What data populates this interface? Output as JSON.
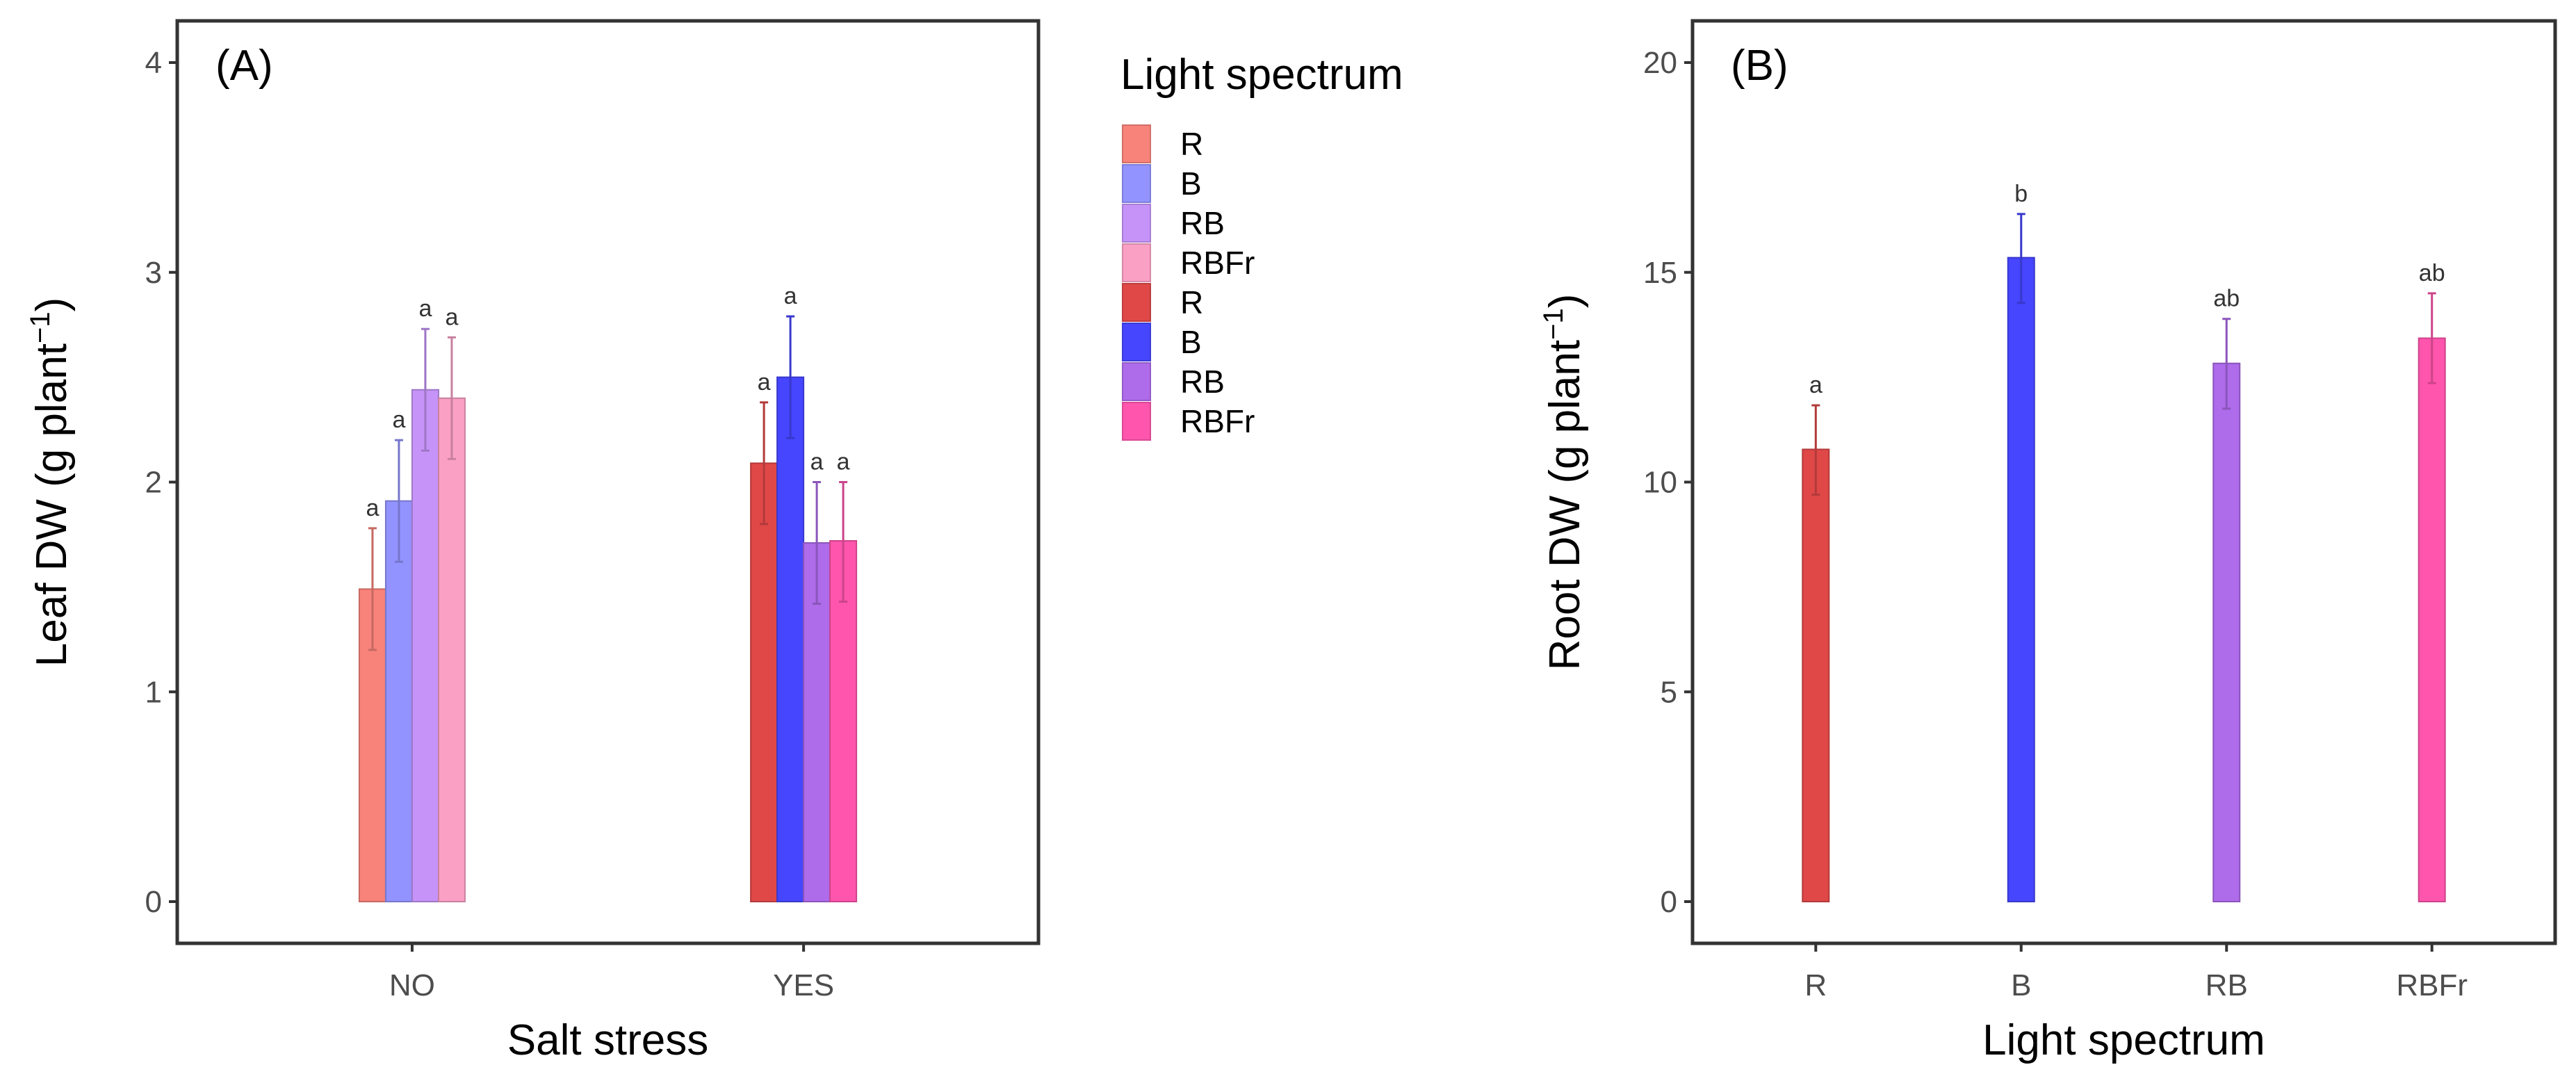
{
  "chart_data": [
    {
      "type": "bar",
      "panel_label": "(A)",
      "xlabel": "Salt stress",
      "ylabel": "Leaf DW (g plant",
      "ylabel_sup": "−1",
      "ylabel_close": ")",
      "ylim": [
        0,
        4
      ],
      "yticks": [
        "0",
        "1",
        "2",
        "3",
        "4"
      ],
      "categories": [
        "NO",
        "YES"
      ],
      "legend": {
        "title": "Light spectrum",
        "placement": "right",
        "entries": [
          {
            "label": "R",
            "color": "#F8837A"
          },
          {
            "label": "B",
            "color": "#9393FF"
          },
          {
            "label": "RB",
            "color": "#C694F8"
          },
          {
            "label": "RBFr",
            "color": "#FBA0C5"
          },
          {
            "label": "R",
            "color": "#E04848"
          },
          {
            "label": "B",
            "color": "#4646FF"
          },
          {
            "label": "RB",
            "color": "#AE6BEA"
          },
          {
            "label": "RBFr",
            "color": "#FF55AD"
          }
        ]
      },
      "series": [
        {
          "category": "NO",
          "bars": [
            {
              "name": "R",
              "value": 1.49,
              "err_low": 1.2,
              "err_high": 1.78,
              "letter": "a",
              "color": "#F8837A"
            },
            {
              "name": "B",
              "value": 1.91,
              "err_low": 1.62,
              "err_high": 2.2,
              "letter": "a",
              "color": "#9393FF"
            },
            {
              "name": "RB",
              "value": 2.44,
              "err_low": 2.15,
              "err_high": 2.73,
              "letter": "a",
              "color": "#C694F8"
            },
            {
              "name": "RBFr",
              "value": 2.4,
              "err_low": 2.11,
              "err_high": 2.69,
              "letter": "a",
              "color": "#FBA0C5"
            }
          ]
        },
        {
          "category": "YES",
          "bars": [
            {
              "name": "R",
              "value": 2.09,
              "err_low": 1.8,
              "err_high": 2.38,
              "letter": "a",
              "color": "#E04848"
            },
            {
              "name": "B",
              "value": 2.5,
              "err_low": 2.21,
              "err_high": 2.79,
              "letter": "a",
              "color": "#4646FF"
            },
            {
              "name": "RB",
              "value": 1.71,
              "err_low": 1.42,
              "err_high": 2.0,
              "letter": "a",
              "color": "#AE6BEA"
            },
            {
              "name": "RBFr",
              "value": 1.72,
              "err_low": 1.43,
              "err_high": 2.0,
              "letter": "a",
              "color": "#FF55AD"
            }
          ]
        }
      ]
    },
    {
      "type": "bar",
      "panel_label": "(B)",
      "xlabel": "Light spectrum",
      "ylabel": "Root DW (g plant",
      "ylabel_sup": "−1",
      "ylabel_close": ")",
      "ylim": [
        0,
        20
      ],
      "yticks": [
        "0",
        "5",
        "10",
        "15",
        "20"
      ],
      "categories": [
        "R",
        "B",
        "RB",
        "RBFr"
      ],
      "bars": [
        {
          "name": "R",
          "value": 10.78,
          "err_low": 9.7,
          "err_high": 11.83,
          "letter": "a",
          "color": "#E04848"
        },
        {
          "name": "B",
          "value": 15.35,
          "err_low": 14.27,
          "err_high": 16.39,
          "letter": "b",
          "color": "#4646FF"
        },
        {
          "name": "RB",
          "value": 12.83,
          "err_low": 11.75,
          "err_high": 13.89,
          "letter": "ab",
          "color": "#AE6BEA"
        },
        {
          "name": "RBFr",
          "value": 13.43,
          "err_low": 12.36,
          "err_high": 14.5,
          "letter": "ab",
          "color": "#FF55AD"
        }
      ]
    }
  ]
}
